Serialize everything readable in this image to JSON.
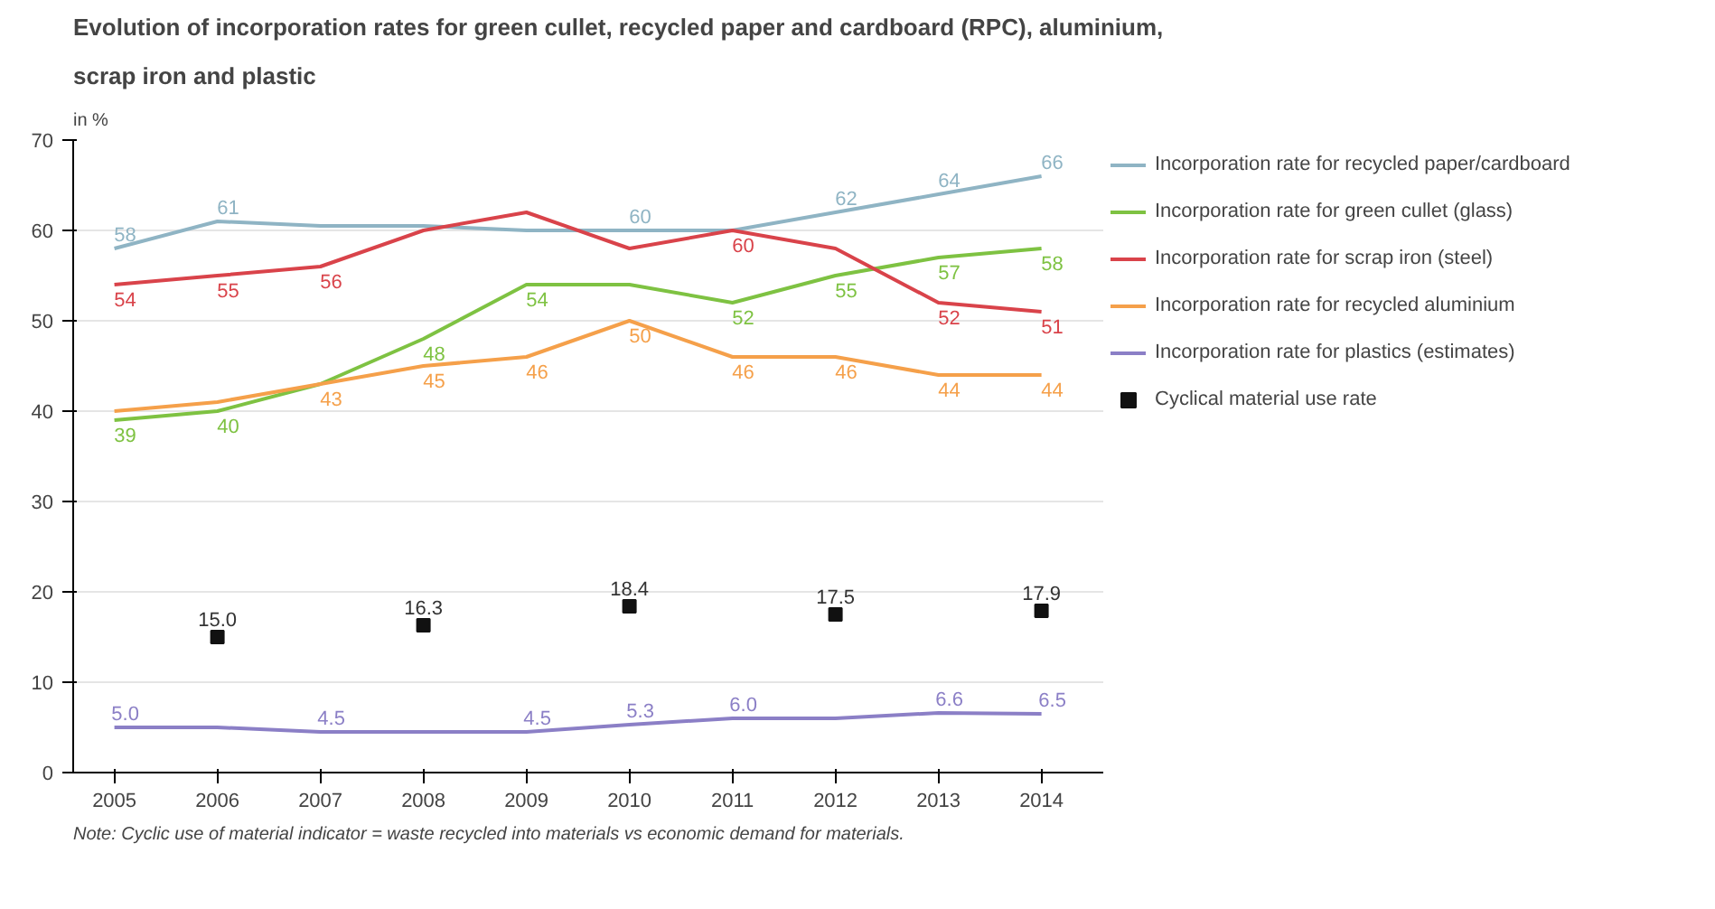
{
  "chart_data": {
    "type": "line",
    "title": "Evolution of incorporation rates for green cullet, recycled paper and cardboard (RPC), aluminium,",
    "subtitle": "scrap iron and plastic",
    "ylabel": "in %",
    "x": [
      2005,
      2006,
      2007,
      2008,
      2009,
      2010,
      2011,
      2012,
      2013,
      2014
    ],
    "xlim": [
      2004.6,
      2014.6
    ],
    "xticks": [
      2005,
      2006,
      2007,
      2008,
      2009,
      2010,
      2011,
      2012,
      2013,
      2014
    ],
    "ylim": [
      0,
      70
    ],
    "yticks": [
      0,
      10,
      20,
      30,
      40,
      50,
      60,
      70
    ],
    "grid": "y",
    "legend": "right",
    "marker": "none",
    "line_style": "solid",
    "series": [
      {
        "name": "Incorporation rate for recycled paper/cardboard",
        "color": "#8fb4c4",
        "values": [
          58,
          61,
          60.5,
          60.5,
          60,
          60,
          60,
          62,
          64,
          66
        ],
        "value_labels": [
          "58",
          "61",
          null,
          null,
          null,
          "60",
          null,
          "62",
          "64",
          "66"
        ]
      },
      {
        "name": "Incorporation rate for green cullet (glass)",
        "color": "#7ec242",
        "values": [
          39,
          40,
          43,
          48,
          54,
          54,
          52,
          55,
          57,
          58
        ],
        "value_labels": [
          "39",
          "40",
          null,
          "48",
          "54",
          null,
          "52",
          "55",
          "57",
          "58"
        ]
      },
      {
        "name": "Incorporation rate for scrap iron (steel)",
        "color": "#d9434a",
        "values": [
          54,
          55,
          56,
          60,
          62,
          58,
          60,
          58,
          52,
          51
        ],
        "value_labels": [
          "54",
          "55",
          "56",
          null,
          null,
          null,
          "60",
          null,
          "52",
          "51"
        ]
      },
      {
        "name": "Incorporation rate for recycled aluminium",
        "color": "#f5a04a",
        "values": [
          40,
          41,
          43,
          45,
          46,
          50,
          46,
          46,
          44,
          44
        ],
        "value_labels": [
          null,
          null,
          "43",
          "45",
          "46",
          "50",
          "46",
          "46",
          "44",
          "44"
        ]
      },
      {
        "name": "Incorporation rate for plastics (estimates)",
        "color": "#8b7fc6",
        "values": [
          5.0,
          5.0,
          4.5,
          4.5,
          4.5,
          5.3,
          6.0,
          6.0,
          6.6,
          6.5
        ],
        "value_labels": [
          "5.0",
          null,
          "4.5",
          null,
          "4.5",
          "5.3",
          "6.0",
          null,
          "6.6",
          "6.5"
        ]
      },
      {
        "name": "Cyclical material use rate",
        "type": "scatter",
        "marker": "square",
        "color": "#111111",
        "x": [
          2006,
          2008,
          2010,
          2012,
          2014
        ],
        "values": [
          15.0,
          16.3,
          18.4,
          17.5,
          17.9
        ],
        "value_labels": [
          "15.0",
          "16.3",
          "18.4",
          "17.5",
          "17.9"
        ]
      }
    ],
    "annotations": [
      "Note: Cyclic use of material indicator = waste recycled into materials vs economic demand for materials."
    ]
  }
}
